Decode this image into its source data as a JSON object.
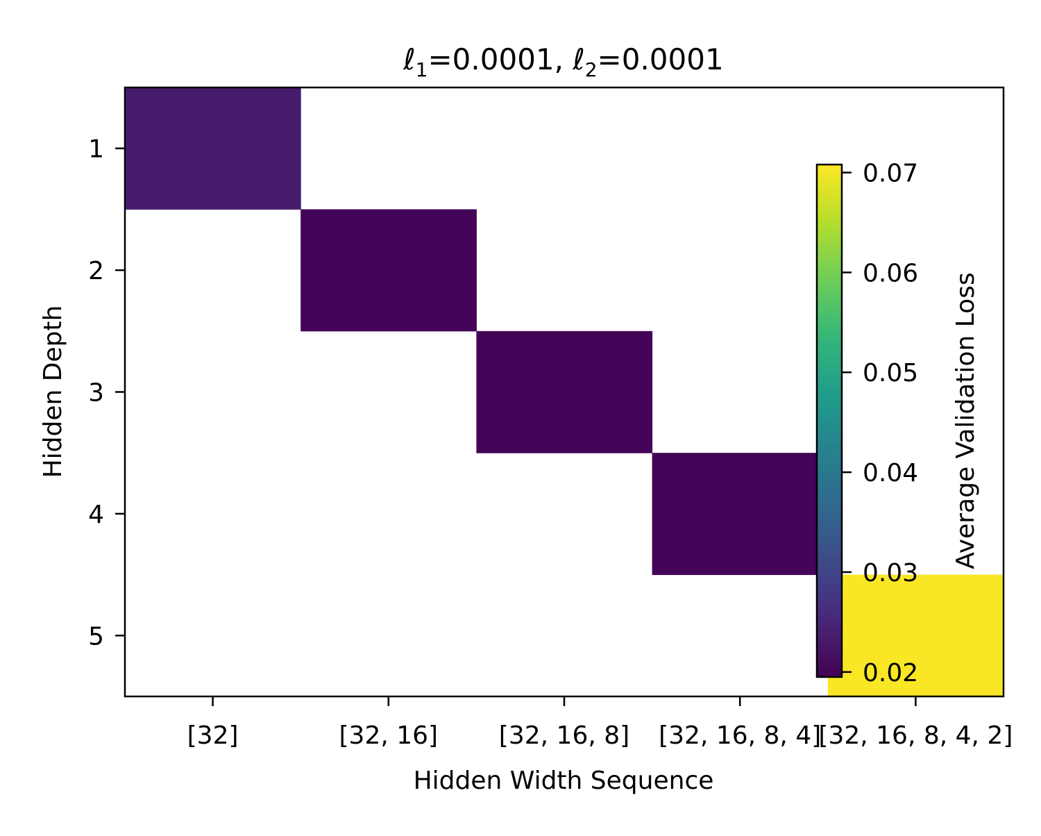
{
  "chart_data": {
    "type": "heatmap",
    "title_parts": {
      "l1_symbol": "ℓ",
      "l1_sub": "1",
      "l1_value": "=0.0001, ",
      "l2_symbol": "ℓ",
      "l2_sub": "2",
      "l2_value": "=0.0001"
    },
    "xlabel": "Hidden Width Sequence",
    "ylabel": "Hidden Depth",
    "x_categories": [
      "[32]",
      "[32, 16]",
      "[32, 16, 8]",
      "[32, 16, 8, 4]",
      "[32, 16, 8, 4, 2]"
    ],
    "y_categories": [
      "1",
      "2",
      "3",
      "4",
      "5"
    ],
    "cells": [
      {
        "x": "[32]",
        "y": "1",
        "value": 0.0235
      },
      {
        "x": "[32, 16]",
        "y": "2",
        "value": 0.02
      },
      {
        "x": "[32, 16, 8]",
        "y": "3",
        "value": 0.02
      },
      {
        "x": "[32, 16, 8, 4]",
        "y": "4",
        "value": 0.02
      },
      {
        "x": "[32, 16, 8, 4, 2]",
        "y": "5",
        "value": 0.0705
      }
    ],
    "colorbar": {
      "label": "Average Validation Loss",
      "colormap": "viridis",
      "range": [
        0.0195,
        0.0708
      ],
      "ticks": [
        0.02,
        0.03,
        0.04,
        0.05,
        0.06,
        0.07
      ],
      "tick_labels": [
        "0.02",
        "0.03",
        "0.04",
        "0.05",
        "0.06",
        "0.07"
      ]
    },
    "missing_cell_color": "#ffffff",
    "grid": false
  }
}
